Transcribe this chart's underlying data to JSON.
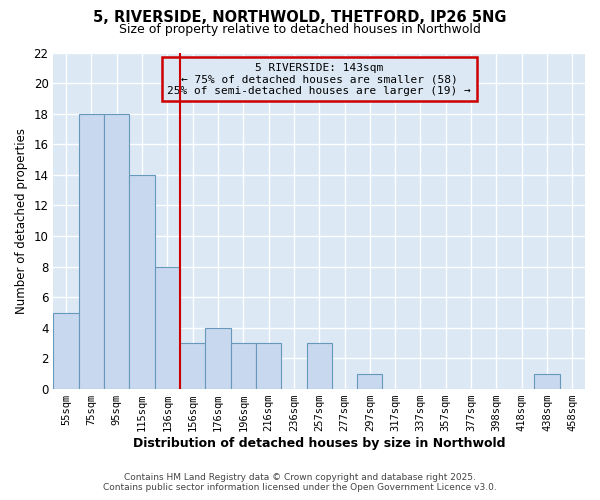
{
  "title1": "5, RIVERSIDE, NORTHWOLD, THETFORD, IP26 5NG",
  "title2": "Size of property relative to detached houses in Northwold",
  "xlabel": "Distribution of detached houses by size in Northwold",
  "ylabel": "Number of detached properties",
  "categories": [
    "55sqm",
    "75sqm",
    "95sqm",
    "115sqm",
    "136sqm",
    "156sqm",
    "176sqm",
    "196sqm",
    "216sqm",
    "236sqm",
    "257sqm",
    "277sqm",
    "297sqm",
    "317sqm",
    "337sqm",
    "357sqm",
    "377sqm",
    "398sqm",
    "418sqm",
    "438sqm",
    "458sqm"
  ],
  "values": [
    5,
    18,
    18,
    14,
    8,
    3,
    4,
    3,
    3,
    0,
    3,
    0,
    1,
    0,
    0,
    0,
    0,
    0,
    0,
    1,
    0
  ],
  "bar_color": "#c8d8ee",
  "bar_edge_color": "#6699bb",
  "vline_x": 4.5,
  "vline_color": "#cc0000",
  "annotation_title": "5 RIVERSIDE: 143sqm",
  "annotation_line1": "← 75% of detached houses are smaller (58)",
  "annotation_line2": "25% of semi-detached houses are larger (19) →",
  "annotation_box_color": "#cc0000",
  "ylim": [
    0,
    22
  ],
  "yticks": [
    0,
    2,
    4,
    6,
    8,
    10,
    12,
    14,
    16,
    18,
    20,
    22
  ],
  "plot_bg_color": "#dce8f4",
  "fig_bg_color": "#ffffff",
  "grid_color": "#ffffff",
  "footer1": "Contains HM Land Registry data © Crown copyright and database right 2025.",
  "footer2": "Contains public sector information licensed under the Open Government Licence v3.0."
}
